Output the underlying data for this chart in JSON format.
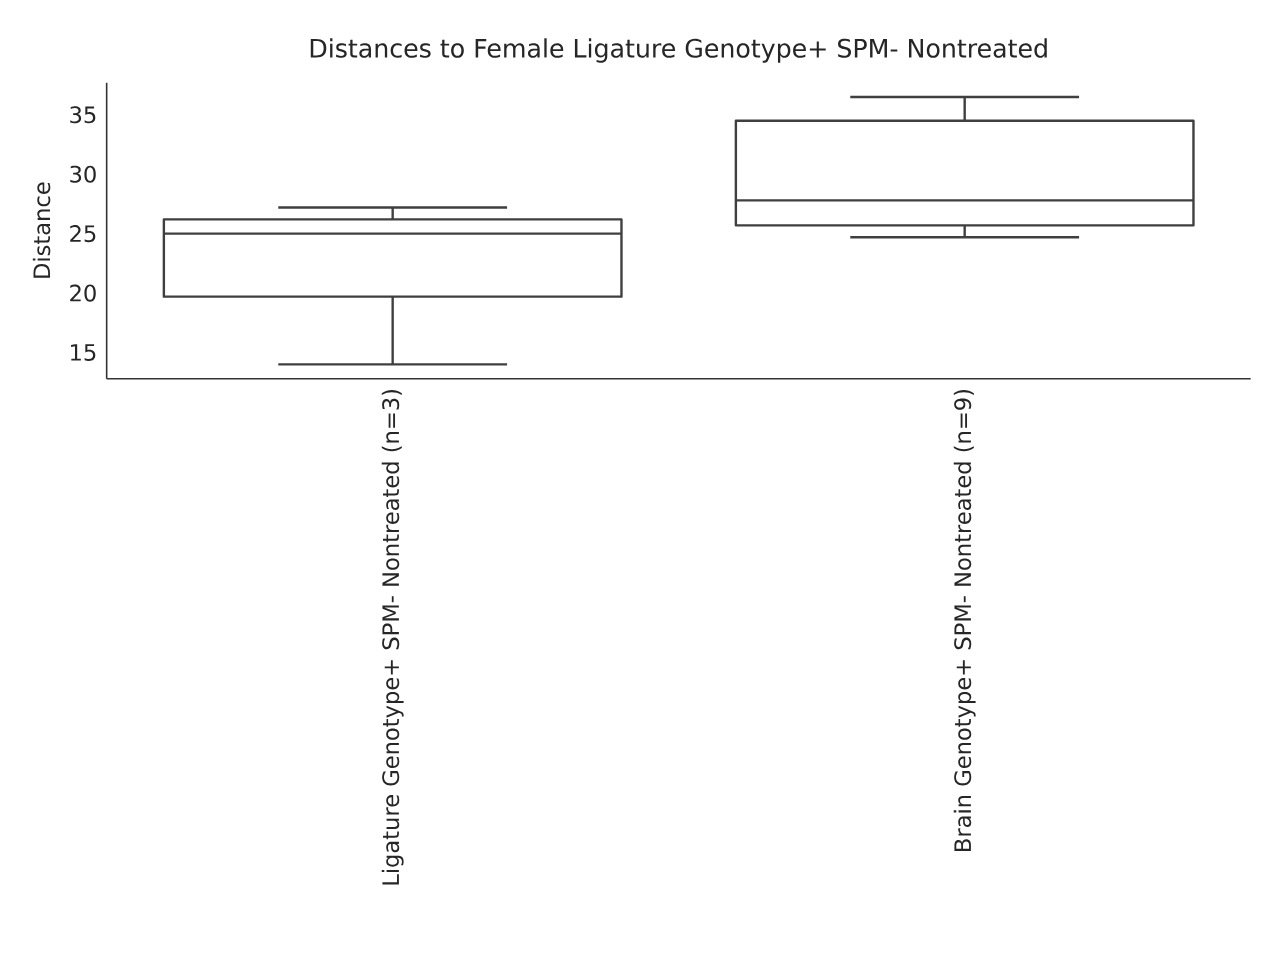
{
  "chart_data": {
    "type": "box",
    "title": "Distances to Female Ligature Genotype+ SPM- Nontreated",
    "ylabel": "Distance",
    "categories": [
      "Ligature Genotype+ SPM- Nontreated (n=3)",
      "Brain Genotype+ SPM- Nontreated (n=9)"
    ],
    "boxes": [
      {
        "low": 14.0,
        "q1": 19.7,
        "median": 25.0,
        "q3": 26.2,
        "high": 27.2
      },
      {
        "low": 24.7,
        "q1": 25.7,
        "median": 27.8,
        "q3": 34.5,
        "high": 36.5
      }
    ],
    "color": "#3f3f3f",
    "ylim": [
      12.8,
      37.7
    ],
    "yticks": [
      15,
      20,
      25,
      30,
      35
    ],
    "grid": false
  }
}
